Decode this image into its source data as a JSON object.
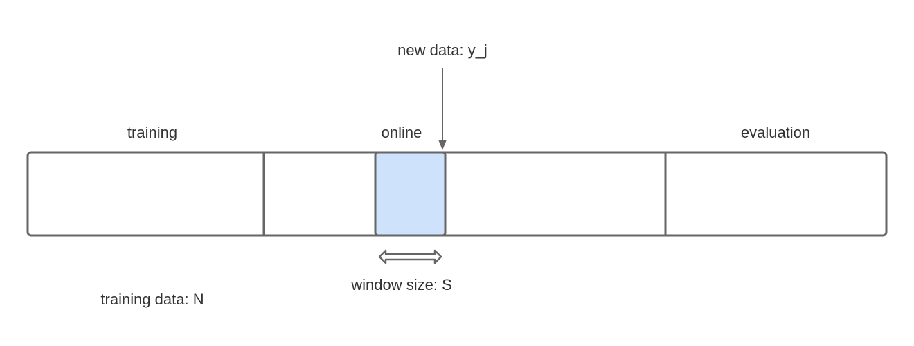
{
  "labels": {
    "new_data": "new data: y_j",
    "training": "training",
    "online": "online",
    "evaluation": "evaluation",
    "window_size": "window size: S",
    "training_data": "training data: N"
  },
  "colors": {
    "stroke": "#666666",
    "window_fill": "#cfe2fb",
    "text": "#333333",
    "background": "#ffffff"
  }
}
